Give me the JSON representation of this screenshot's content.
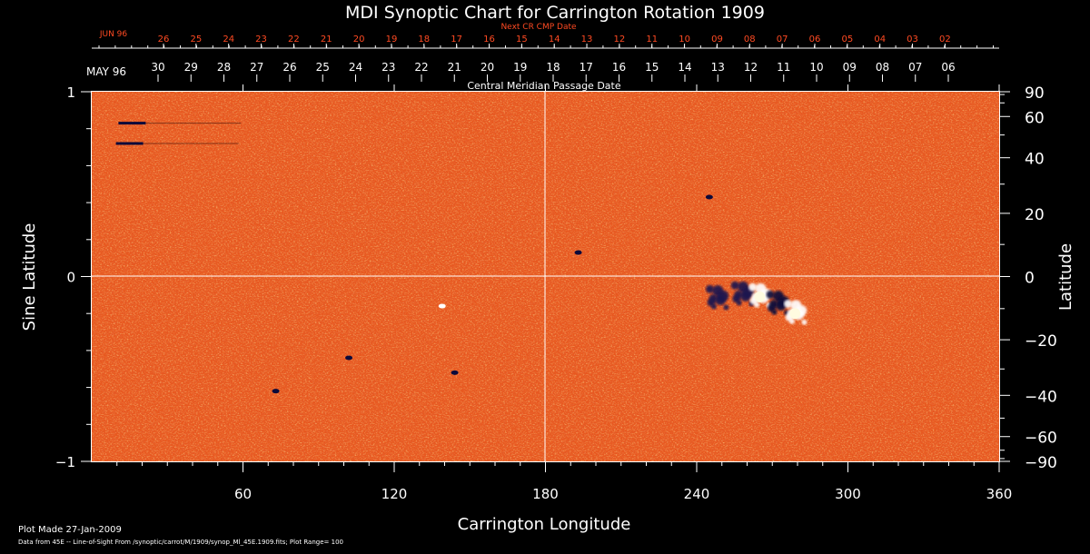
{
  "title": "MDI Synoptic Chart for Carrington Rotation 1909",
  "top_axis": {
    "next_label": "Next CR CMP Date",
    "next_month": "JUN 96",
    "next_ticks": [
      "26",
      "25",
      "24",
      "23",
      "22",
      "21",
      "20",
      "19",
      "18",
      "17",
      "16",
      "15",
      "14",
      "13",
      "12",
      "11",
      "10",
      "09",
      "08",
      "07",
      "06",
      "05",
      "04",
      "03",
      "02"
    ],
    "cmp_month": "MAY 96",
    "cmp_ticks": [
      "30",
      "29",
      "28",
      "27",
      "26",
      "25",
      "24",
      "23",
      "22",
      "21",
      "20",
      "19",
      "18",
      "17",
      "16",
      "15",
      "14",
      "13",
      "12",
      "11",
      "10",
      "09",
      "08",
      "07",
      "06"
    ],
    "cmp_label": "Central Meridian Passage Date"
  },
  "footer": {
    "plot_made": "Plot Made 27-Jan-2009",
    "data_note": "Data from 45E -- Line-of-Sight From /synoptic/carrot/M/1909/synop_Ml_45E.1909.fits; Plot Range=  100"
  },
  "colors": {
    "background": "#000000",
    "map_base": "#e8581f",
    "positive_field": "#ffffff",
    "negative_field": "#0c0a3a",
    "next_cmp_text": "#ff4a22"
  },
  "chart_data": {
    "type": "heatmap",
    "title": "MDI Synoptic Chart for Carrington Rotation 1909",
    "xlabel": "Carrington Longitude",
    "ylabel": "Sine Latitude",
    "y2label": "Latitude",
    "xlim": [
      0,
      360
    ],
    "ylim": [
      -1,
      1
    ],
    "x_ticks": [
      "60",
      "120",
      "180",
      "240",
      "300",
      "360"
    ],
    "y_ticks": [
      "1",
      "0",
      "-1"
    ],
    "lat_ticks": [
      "90",
      "60",
      "40",
      "20",
      "0",
      "-20",
      "-40",
      "-60",
      "-90"
    ],
    "grid": "crosshair at longitude 180 and sine latitude 0",
    "plot_range": 100,
    "features": [
      {
        "type": "active_region",
        "polarity": "mixed",
        "longitude": 248,
        "sin_latitude": -0.12
      },
      {
        "type": "active_region",
        "polarity": "mixed",
        "longitude": 258,
        "sin_latitude": -0.1
      },
      {
        "type": "active_region",
        "polarity": "positive",
        "longitude": 265,
        "sin_latitude": -0.11
      },
      {
        "type": "active_region",
        "polarity": "negative",
        "longitude": 272,
        "sin_latitude": -0.15
      },
      {
        "type": "active_region",
        "polarity": "positive",
        "longitude": 279,
        "sin_latitude": -0.2
      },
      {
        "type": "spot",
        "polarity": "negative",
        "longitude": 245,
        "sin_latitude": 0.43
      },
      {
        "type": "spot",
        "polarity": "negative",
        "longitude": 193,
        "sin_latitude": 0.13
      },
      {
        "type": "spot",
        "polarity": "negative",
        "longitude": 144,
        "sin_latitude": -0.52
      },
      {
        "type": "spot",
        "polarity": "negative",
        "longitude": 73,
        "sin_latitude": -0.62
      },
      {
        "type": "spot",
        "polarity": "negative",
        "longitude": 102,
        "sin_latitude": -0.44
      },
      {
        "type": "spot",
        "polarity": "positive",
        "longitude": 139,
        "sin_latitude": -0.16
      },
      {
        "type": "streak",
        "polarity": "negative",
        "longitude": 16,
        "sin_latitude": 0.83
      },
      {
        "type": "streak",
        "polarity": "negative",
        "longitude": 15,
        "sin_latitude": 0.72
      }
    ]
  }
}
